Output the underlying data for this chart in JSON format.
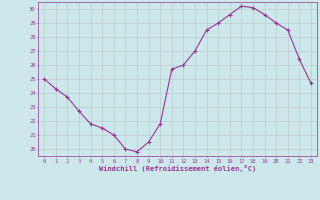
{
  "x": [
    0,
    1,
    2,
    3,
    4,
    5,
    6,
    7,
    8,
    9,
    10,
    11,
    12,
    13,
    14,
    15,
    16,
    17,
    18,
    19,
    20,
    21,
    22,
    23
  ],
  "y": [
    25.0,
    24.3,
    23.7,
    22.7,
    21.8,
    21.5,
    21.0,
    20.0,
    19.8,
    20.5,
    21.8,
    25.7,
    26.0,
    27.0,
    28.5,
    29.0,
    29.6,
    30.2,
    30.1,
    29.6,
    29.0,
    28.5,
    26.4,
    24.7
  ],
  "line_color": "#993399",
  "marker": "+",
  "marker_size": 3,
  "bg_color": "#cce8ea",
  "grid_color": "#bbcccc",
  "xlabel": "Windchill (Refroidissement éolien,°C)",
  "xlabel_color": "#993399",
  "tick_color": "#993399",
  "ylim": [
    19.5,
    30.5
  ],
  "xlim": [
    -0.5,
    23.5
  ],
  "yticks": [
    20,
    21,
    22,
    23,
    24,
    25,
    26,
    27,
    28,
    29,
    30
  ],
  "xticks": [
    0,
    1,
    2,
    3,
    4,
    5,
    6,
    7,
    8,
    9,
    10,
    11,
    12,
    13,
    14,
    15,
    16,
    17,
    18,
    19,
    20,
    21,
    22,
    23
  ]
}
